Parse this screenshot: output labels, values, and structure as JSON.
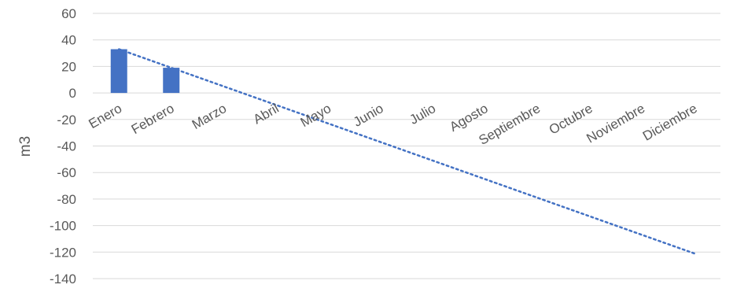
{
  "chart_data": {
    "type": "bar",
    "ylabel": "m3",
    "categories": [
      "Enero",
      "Febrero",
      "Marzo",
      "Abril",
      "Mayo",
      "Junio",
      "Julio",
      "Agosto",
      "Septiembre",
      "Octubre",
      "Noviembre",
      "Diciembre"
    ],
    "series": [
      {
        "values": [
          33,
          19,
          null,
          null,
          null,
          null,
          null,
          null,
          null,
          null,
          null,
          null
        ],
        "color": "#4472c4"
      }
    ],
    "trendline": {
      "type": "linear",
      "style": "dotted",
      "color": "#4472c4",
      "start": {
        "category": "Enero",
        "value": 33
      },
      "end": {
        "category": "Diciembre",
        "value": -121
      }
    },
    "ylim": [
      -140,
      60
    ],
    "yticks": [
      60,
      40,
      20,
      0,
      -20,
      -40,
      -60,
      -80,
      -100,
      -120,
      -140
    ],
    "grid": true,
    "legend": "none"
  }
}
